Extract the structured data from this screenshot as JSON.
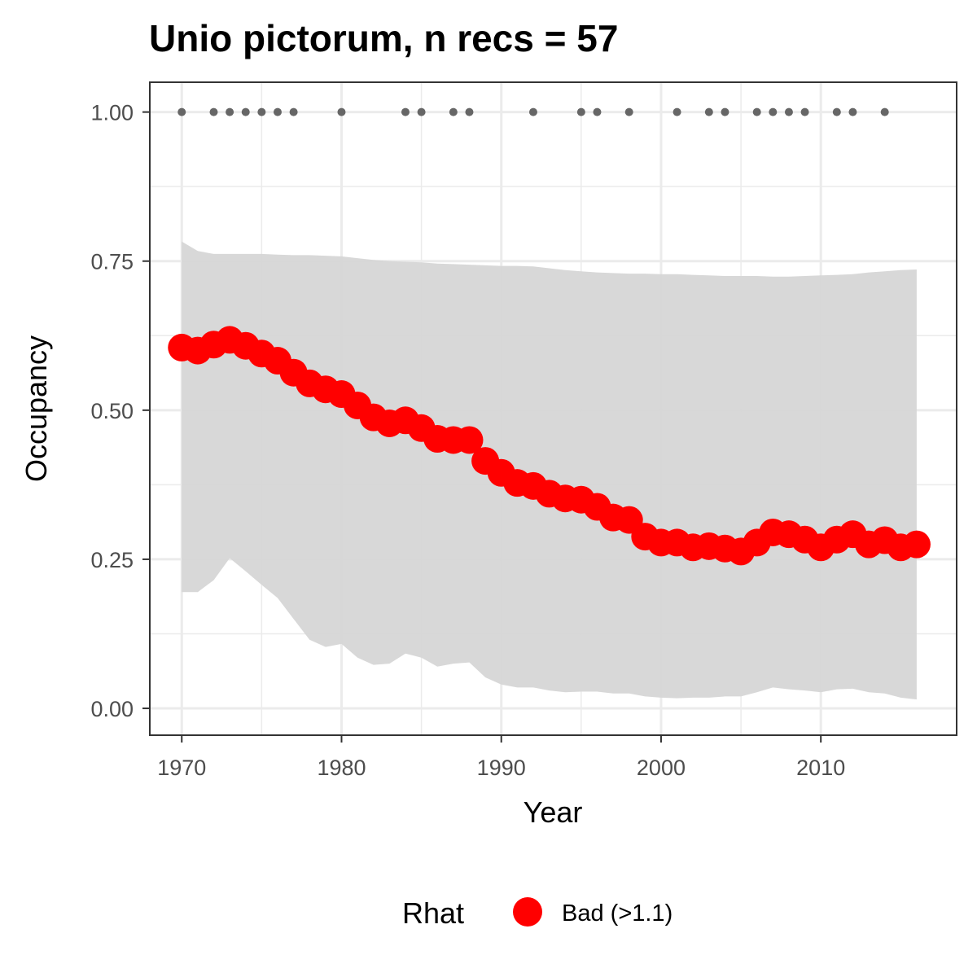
{
  "chart_data": {
    "type": "line",
    "title": "Unio pictorum, n recs = 57",
    "xlabel": "Year",
    "ylabel": "Occupancy",
    "xlim": [
      1968,
      2018.5
    ],
    "ylim": [
      -0.045,
      1.05
    ],
    "x_ticks": [
      1970,
      1980,
      1990,
      2000,
      2010
    ],
    "x_tick_labels": [
      "1970",
      "1980",
      "1990",
      "2000",
      "2010"
    ],
    "y_ticks": [
      0,
      0.25,
      0.5,
      0.75,
      1
    ],
    "y_tick_labels": [
      "0.00",
      "0.25",
      "0.50",
      "0.75",
      "1.00"
    ],
    "grid": true,
    "legend": {
      "title": "Rhat",
      "position": "bottom",
      "items": [
        {
          "label": "Bad (>1.1)",
          "color": "#ff0000"
        }
      ]
    },
    "colors": {
      "mean": "#ff0000",
      "ribbon": "#d6d6d6",
      "records": "#666666",
      "panel_border": "#333333",
      "grid": "#ebebeb"
    },
    "series": [
      {
        "role": "mean occupancy",
        "x": [
          1970,
          1971,
          1972,
          1973,
          1974,
          1975,
          1976,
          1977,
          1978,
          1979,
          1980,
          1981,
          1982,
          1983,
          1984,
          1985,
          1986,
          1987,
          1988,
          1989,
          1990,
          1991,
          1992,
          1993,
          1994,
          1995,
          1996,
          1997,
          1998,
          1999,
          2000,
          2001,
          2002,
          2003,
          2004,
          2005,
          2006,
          2007,
          2008,
          2009,
          2010,
          2011,
          2012,
          2013,
          2014,
          2015,
          2016
        ],
        "y": [
          0.605,
          0.6,
          0.61,
          0.618,
          0.608,
          0.595,
          0.583,
          0.563,
          0.545,
          0.535,
          0.527,
          0.508,
          0.488,
          0.478,
          0.483,
          0.47,
          0.452,
          0.45,
          0.45,
          0.415,
          0.395,
          0.378,
          0.373,
          0.36,
          0.352,
          0.35,
          0.338,
          0.32,
          0.316,
          0.288,
          0.278,
          0.278,
          0.27,
          0.272,
          0.268,
          0.263,
          0.278,
          0.295,
          0.292,
          0.283,
          0.27,
          0.283,
          0.292,
          0.275,
          0.282,
          0.27,
          0.275
        ]
      }
    ],
    "ribbon": {
      "x": [
        1970,
        1971,
        1972,
        1973,
        1974,
        1975,
        1976,
        1977,
        1978,
        1979,
        1980,
        1981,
        1982,
        1983,
        1984,
        1985,
        1986,
        1987,
        1988,
        1989,
        1990,
        1991,
        1992,
        1993,
        1994,
        1995,
        1996,
        1997,
        1998,
        1999,
        2000,
        2001,
        2002,
        2003,
        2004,
        2005,
        2006,
        2007,
        2008,
        2009,
        2010,
        2011,
        2012,
        2013,
        2014,
        2015,
        2016
      ],
      "lower": [
        0.195,
        0.195,
        0.215,
        0.252,
        0.23,
        0.207,
        0.185,
        0.15,
        0.115,
        0.103,
        0.108,
        0.085,
        0.073,
        0.075,
        0.092,
        0.085,
        0.07,
        0.075,
        0.077,
        0.052,
        0.04,
        0.035,
        0.035,
        0.03,
        0.027,
        0.028,
        0.028,
        0.025,
        0.025,
        0.02,
        0.018,
        0.017,
        0.018,
        0.018,
        0.02,
        0.02,
        0.027,
        0.035,
        0.032,
        0.03,
        0.027,
        0.032,
        0.033,
        0.027,
        0.025,
        0.018,
        0.015
      ],
      "upper": [
        0.783,
        0.767,
        0.762,
        0.762,
        0.762,
        0.762,
        0.761,
        0.76,
        0.76,
        0.759,
        0.758,
        0.755,
        0.752,
        0.75,
        0.749,
        0.748,
        0.746,
        0.745,
        0.744,
        0.743,
        0.742,
        0.742,
        0.741,
        0.738,
        0.735,
        0.733,
        0.731,
        0.73,
        0.729,
        0.729,
        0.728,
        0.728,
        0.727,
        0.726,
        0.725,
        0.725,
        0.725,
        0.724,
        0.724,
        0.725,
        0.726,
        0.727,
        0.728,
        0.731,
        0.733,
        0.735,
        0.736
      ]
    },
    "records": {
      "y": 1,
      "x": [
        1970,
        1972,
        1973,
        1974,
        1975,
        1976,
        1977,
        1980,
        1984,
        1985,
        1987,
        1988,
        1992,
        1995,
        1996,
        1998,
        2001,
        2003,
        2004,
        2006,
        2007,
        2008,
        2009,
        2011,
        2012,
        2014
      ]
    }
  }
}
